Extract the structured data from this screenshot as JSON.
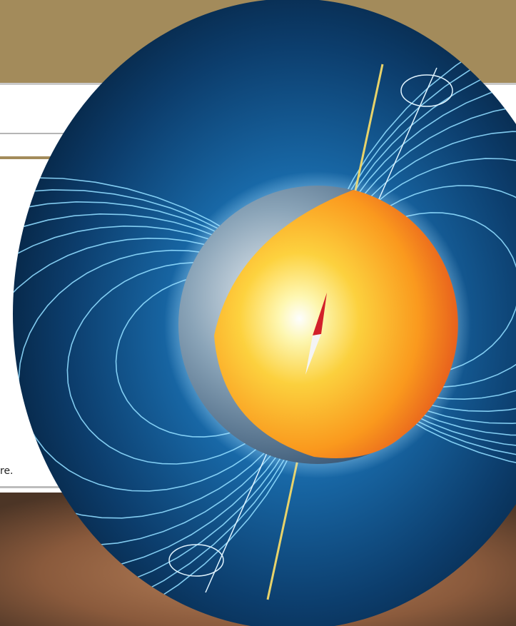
{
  "fragment_text": "re."
}
